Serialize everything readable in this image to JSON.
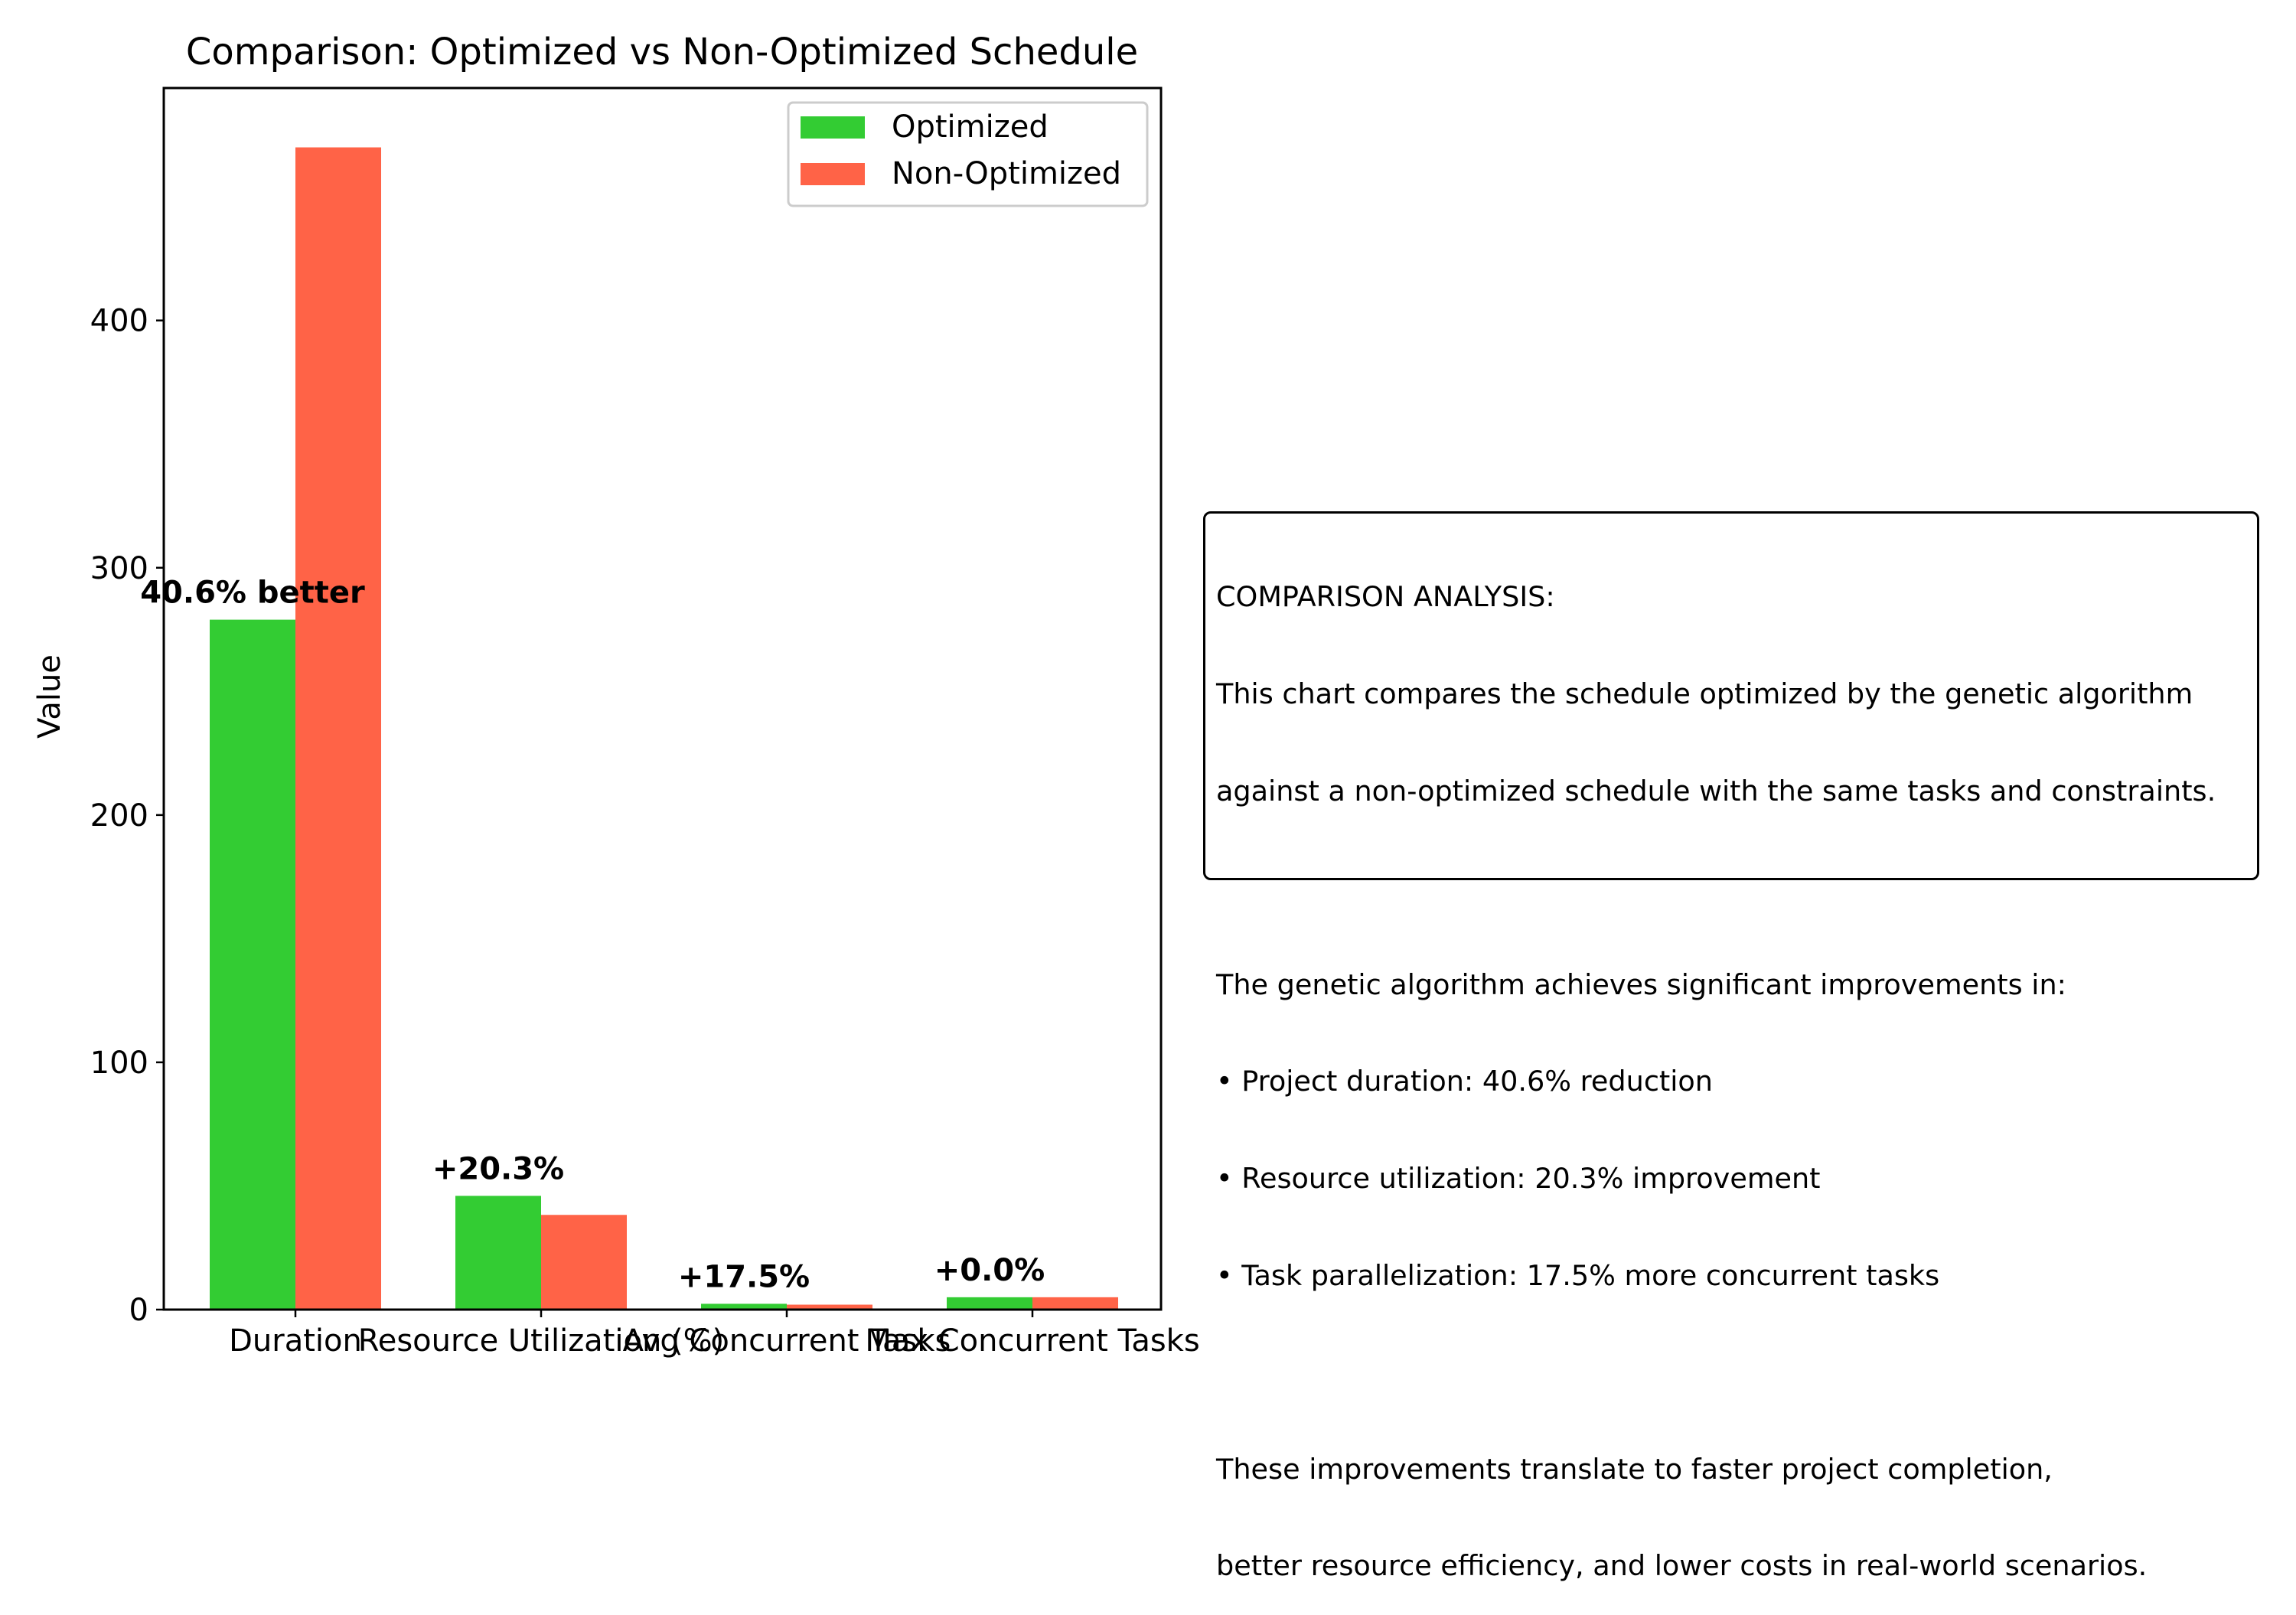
{
  "chart_data": {
    "type": "bar",
    "title": "Comparison: Optimized vs Non-Optimized Schedule",
    "xlabel": "",
    "ylabel": "Value",
    "categories": [
      "Duration",
      "Resource Utilization (%)",
      "Avg Concurrent Tasks",
      "Max Concurrent Tasks"
    ],
    "series": [
      {
        "name": "Optimized",
        "color": "#33cc33",
        "values": [
          279,
          46,
          2.35,
          5
        ]
      },
      {
        "name": "Non-Optimized",
        "color": "#ff6347",
        "values": [
          470,
          38.3,
          2.0,
          5
        ]
      }
    ],
    "bar_annotations": [
      "40.6% better",
      "+20.3%",
      "+17.5%",
      "+0.0%"
    ],
    "ylim": [
      0,
      494
    ],
    "yticks": [
      0,
      100,
      200,
      300,
      400
    ],
    "legend": "top-right",
    "grid": false
  },
  "analysis": {
    "lines": [
      "COMPARISON ANALYSIS:",
      "This chart compares the schedule optimized by the genetic algorithm",
      "against a non-optimized schedule with the same tasks and constraints.",
      "",
      "The genetic algorithm achieves significant improvements in:",
      "• Project duration: 40.6% reduction",
      "• Resource utilization: 20.3% improvement",
      "• Task parallelization: 17.5% more concurrent tasks",
      "",
      "These improvements translate to faster project completion,",
      "better resource efficiency, and lower costs in real-world scenarios."
    ]
  }
}
